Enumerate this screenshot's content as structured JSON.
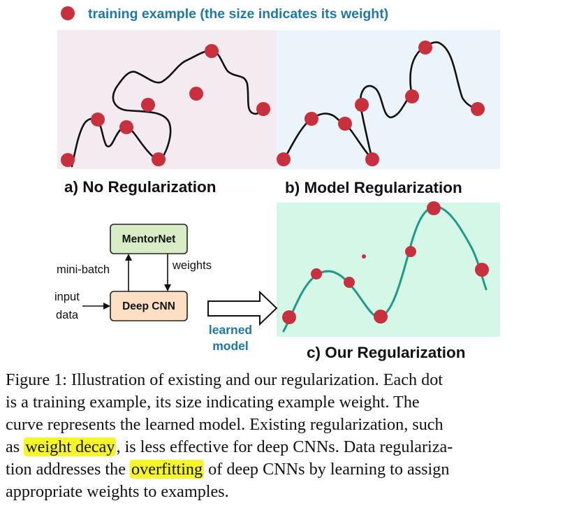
{
  "legend": {
    "text": "training example (the size indicates its weight)"
  },
  "panels": {
    "a": {
      "label": "a) No Regularization"
    },
    "b": {
      "label": "b) Model Regularization"
    },
    "c": {
      "label": "c) Our Regularization"
    }
  },
  "diagram": {
    "mentornet": "MentorNet",
    "deepcnn": "Deep CNN",
    "minibatch": "mini-batch",
    "weights": "weights",
    "input_line1": "input",
    "input_line2": "data",
    "learned_line1": "learned",
    "learned_line2": "model"
  },
  "caption": {
    "line1": "Figure 1: Illustration of existing and our regularization. Each dot",
    "line2": "is a training example, its size indicating example weight. The",
    "line3": "curve represents the learned model. Existing regularization, such",
    "line4_pre": "as ",
    "line4_hl": "weight decay",
    "line4_post": ", is less effective for deep CNNs. Data regulariza-",
    "line5_pre": "tion addresses the ",
    "line5_hl": "overfitting",
    "line5_post": " of deep CNNs by learning to assign",
    "line6": "appropriate weights to examples."
  },
  "colors": {
    "dot": "#c8303e",
    "curve_c": "#1d9b86",
    "accent_text": "#1e78a8",
    "bg_a": "#f4ebf0",
    "bg_b": "#ecf4fb",
    "bg_c": "#d5f7e8",
    "mentornet_box": "#d8ecc6",
    "deepcnn_box": "#fde0c4",
    "highlight": "#f5f52a"
  }
}
